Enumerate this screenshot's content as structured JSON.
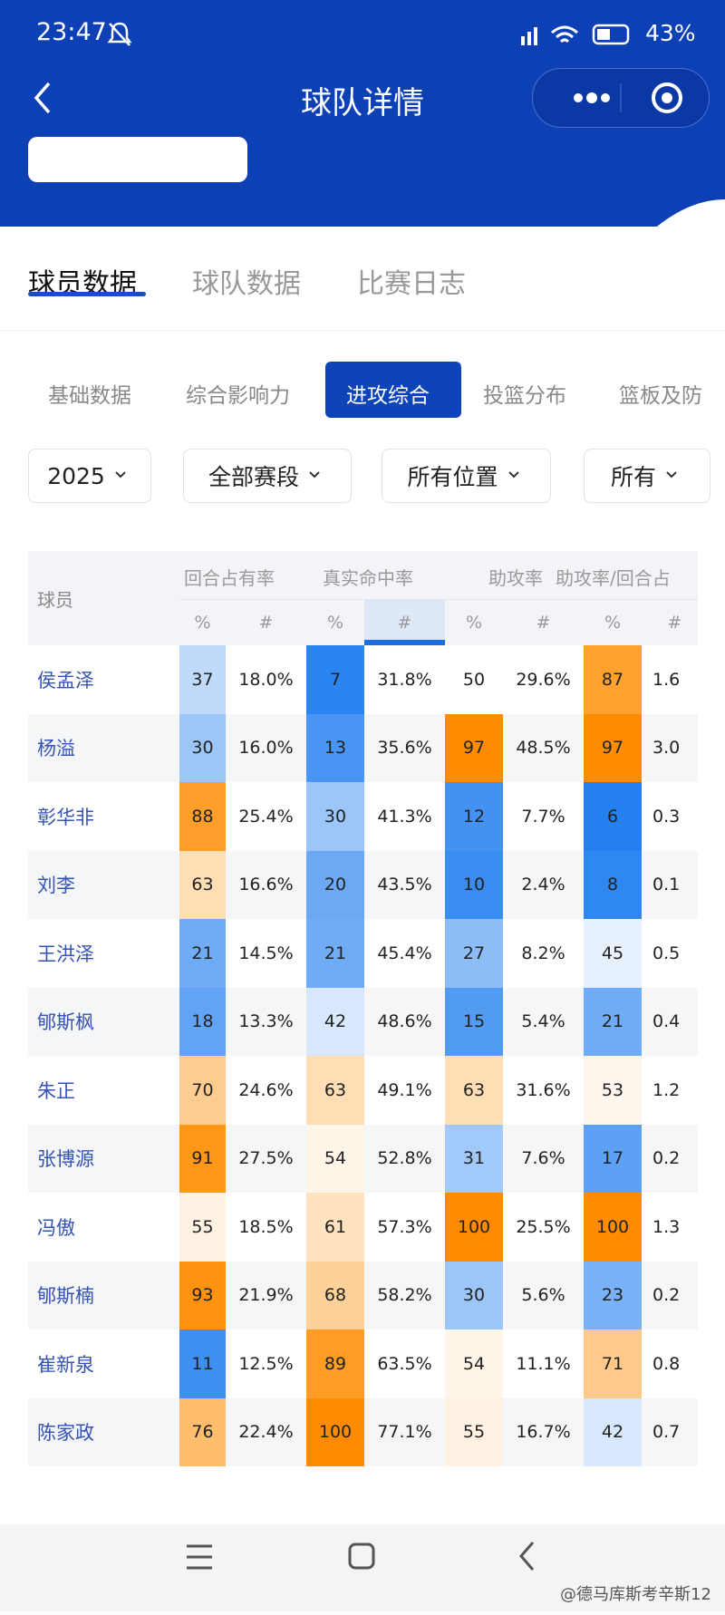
{
  "status": {
    "time": "23:47",
    "battery": "43%"
  },
  "header": {
    "title": "球队详情"
  },
  "tabs": [
    "球员数据",
    "球队数据",
    "比赛日志"
  ],
  "subtabs": [
    "基础数据",
    "综合影响力",
    "进攻综合",
    "投篮分布",
    "篮板及防"
  ],
  "filters": [
    "2025",
    "全部赛段",
    "所有位置",
    "所有"
  ],
  "table": {
    "player_header": "球员",
    "groups": [
      "回合占有率",
      "真实命中率",
      "助攻率",
      "助攻率/回合占"
    ],
    "subheaders": [
      "%",
      "#",
      "%",
      "#",
      "%",
      "#",
      "%",
      "#"
    ],
    "rows": [
      [
        "侯孟泽",
        37,
        "18.0%",
        7,
        "31.8%",
        50,
        "29.6%",
        87,
        "1.6"
      ],
      [
        "杨溢",
        30,
        "16.0%",
        13,
        "35.6%",
        97,
        "48.5%",
        97,
        "3.0"
      ],
      [
        "彰华非",
        88,
        "25.4%",
        30,
        "41.3%",
        12,
        "7.7%",
        6,
        "0.3"
      ],
      [
        "刘李",
        63,
        "16.6%",
        20,
        "43.5%",
        10,
        "2.4%",
        8,
        "0.1"
      ],
      [
        "王洪泽",
        21,
        "14.5%",
        21,
        "45.4%",
        27,
        "8.2%",
        45,
        "0.5"
      ],
      [
        "郇斯枫",
        18,
        "13.3%",
        42,
        "48.6%",
        15,
        "5.4%",
        21,
        "0.4"
      ],
      [
        "朱正",
        70,
        "24.6%",
        63,
        "49.1%",
        63,
        "31.6%",
        53,
        "1.2"
      ],
      [
        "张博源",
        91,
        "27.5%",
        54,
        "52.8%",
        31,
        "7.6%",
        17,
        "0.2"
      ],
      [
        "冯傲",
        55,
        "18.5%",
        61,
        "57.3%",
        100,
        "25.5%",
        100,
        "1.3"
      ],
      [
        "郇斯楠",
        93,
        "21.9%",
        68,
        "58.2%",
        30,
        "5.6%",
        23,
        "0.2"
      ],
      [
        "崔新泉",
        11,
        "12.5%",
        89,
        "63.5%",
        54,
        "11.1%",
        71,
        "0.8"
      ],
      [
        "陈家政",
        76,
        "22.4%",
        100,
        "77.1%",
        55,
        "16.7%",
        42,
        "0.7"
      ]
    ]
  },
  "watermark": "@德马库斯考辛斯12"
}
